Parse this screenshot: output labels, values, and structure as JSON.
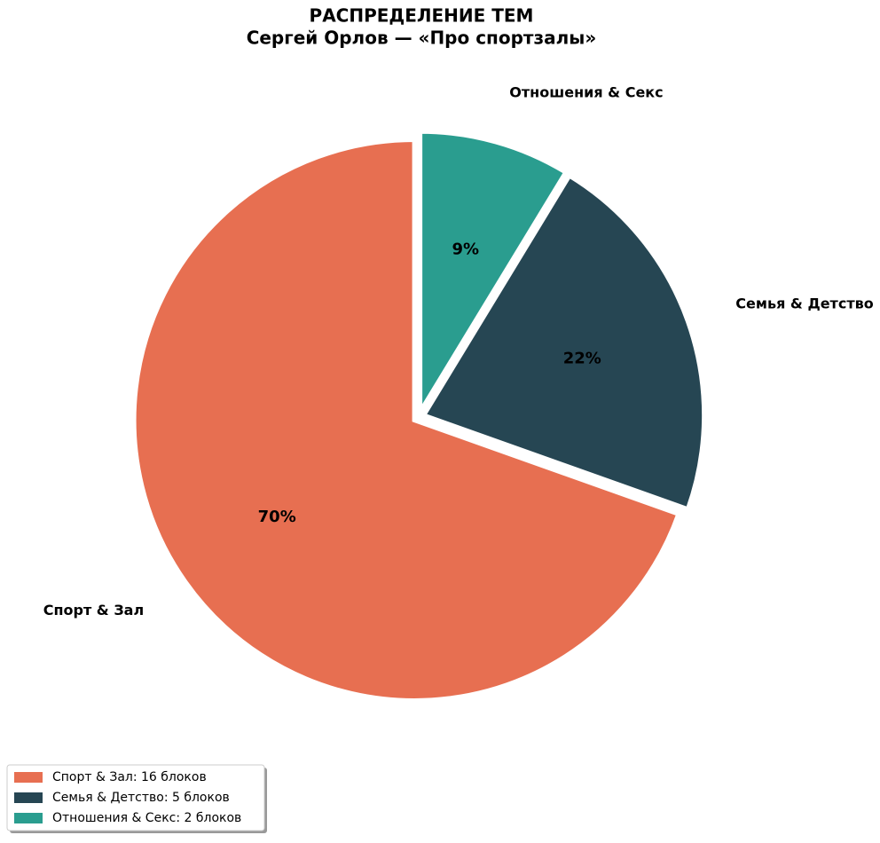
{
  "chart_data": {
    "type": "pie",
    "title": "РАСПРЕДЕЛЕНИЕ ТЕМ",
    "subtitle": "Сергей Орлов — «Про спортзалы»",
    "categories": [
      "Спорт & Зал",
      "Семья & Детство",
      "Отношения & Секс"
    ],
    "values": [
      16,
      5,
      2
    ],
    "value_labels": [
      "70%",
      "22%",
      "9%"
    ],
    "colors": [
      "#e76f51",
      "#264653",
      "#2a9d8f"
    ],
    "legend_labels": [
      "Спорт & Зал: 16 блоков",
      "Семья & Детство: 5 блоков",
      "Отношения & Секс: 2 блоков"
    ],
    "legend": "lower left",
    "start_angle": 90
  }
}
